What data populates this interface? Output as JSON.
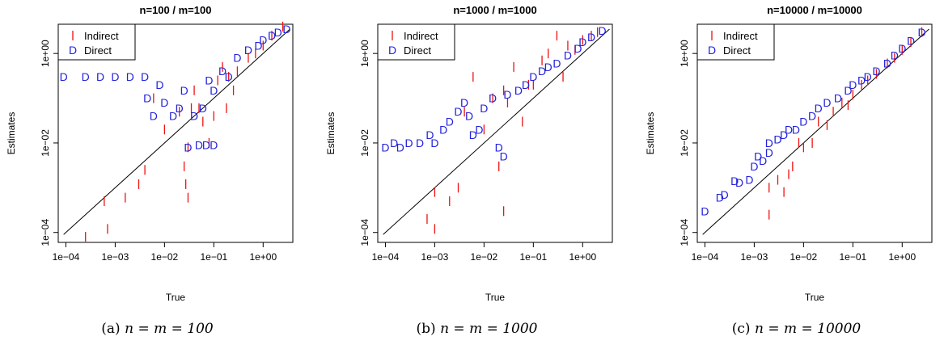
{
  "colors": {
    "indirect": "#ee1111",
    "direct": "#2222dd",
    "axis": "#000000"
  },
  "chart_data": [
    {
      "type": "scatter",
      "title": "n=100 / m=100",
      "xlabel": "True",
      "ylabel": "Estimates",
      "xscale": "log",
      "yscale": "log",
      "xlim": [
        7e-05,
        4
      ],
      "ylim": [
        6e-05,
        4.5
      ],
      "xticks": [
        "1e−04",
        "1e−03",
        "1e−02",
        "1e−01",
        "1e+00"
      ],
      "yticks": [
        "1e−04",
        "1e−02",
        "1e+00"
      ],
      "legend": {
        "position": "top-left",
        "entries": [
          {
            "symbol": "I",
            "label": "Indirect"
          },
          {
            "symbol": "D",
            "label": "Direct"
          }
        ]
      },
      "reference_line": "y = x",
      "series": [
        {
          "name": "Indirect",
          "symbol": "I",
          "points": [
            [
              0.00025,
              8e-05
            ],
            [
              0.0007,
              0.00012
            ],
            [
              0.0016,
              0.0006
            ],
            [
              0.003,
              0.0012
            ],
            [
              0.0006,
              0.0005
            ],
            [
              0.004,
              0.0025
            ],
            [
              0.006,
              0.1
            ],
            [
              0.01,
              0.02
            ],
            [
              0.02,
              0.05
            ],
            [
              0.025,
              0.003
            ],
            [
              0.027,
              0.0012
            ],
            [
              0.03,
              0.0006
            ],
            [
              0.03,
              0.008
            ],
            [
              0.035,
              0.06
            ],
            [
              0.04,
              0.15
            ],
            [
              0.05,
              0.06
            ],
            [
              0.06,
              0.03
            ],
            [
              0.08,
              0.01
            ],
            [
              0.1,
              0.04
            ],
            [
              0.12,
              0.25
            ],
            [
              0.15,
              0.5
            ],
            [
              0.18,
              0.06
            ],
            [
              0.2,
              0.3
            ],
            [
              0.25,
              0.15
            ],
            [
              0.3,
              0.4
            ],
            [
              0.5,
              0.8
            ],
            [
              0.7,
              1
            ],
            [
              1,
              1.5
            ],
            [
              1.5,
              2.5
            ],
            [
              2.5,
              4
            ]
          ]
        },
        {
          "name": "Direct",
          "symbol": "D",
          "points": [
            [
              9e-05,
              0.3
            ],
            [
              0.00025,
              0.3
            ],
            [
              0.0005,
              0.3
            ],
            [
              0.001,
              0.3
            ],
            [
              0.002,
              0.3
            ],
            [
              0.004,
              0.3
            ],
            [
              0.0045,
              0.1
            ],
            [
              0.006,
              0.04
            ],
            [
              0.008,
              0.2
            ],
            [
              0.01,
              0.08
            ],
            [
              0.015,
              0.04
            ],
            [
              0.02,
              0.06
            ],
            [
              0.025,
              0.15
            ],
            [
              0.03,
              0.008
            ],
            [
              0.04,
              0.04
            ],
            [
              0.05,
              0.009
            ],
            [
              0.06,
              0.06
            ],
            [
              0.07,
              0.009
            ],
            [
              0.1,
              0.009
            ],
            [
              0.08,
              0.25
            ],
            [
              0.1,
              0.15
            ],
            [
              0.15,
              0.4
            ],
            [
              0.2,
              0.3
            ],
            [
              0.3,
              0.8
            ],
            [
              0.5,
              1.2
            ],
            [
              0.8,
              1.5
            ],
            [
              1,
              2
            ],
            [
              1.5,
              2.5
            ],
            [
              2,
              3
            ],
            [
              3,
              3.5
            ]
          ]
        }
      ]
    },
    {
      "type": "scatter",
      "title": "n=1000 / m=1000",
      "xlabel": "True",
      "ylabel": "Estimates",
      "xscale": "log",
      "yscale": "log",
      "xlim": [
        7e-05,
        4
      ],
      "ylim": [
        6e-05,
        4.5
      ],
      "xticks": [
        "1e−04",
        "1e−03",
        "1e−02",
        "1e−01",
        "1e+00"
      ],
      "yticks": [
        "1e−04",
        "1e−02",
        "1e+00"
      ],
      "legend": {
        "position": "top-left",
        "entries": [
          {
            "symbol": "I",
            "label": "Indirect"
          },
          {
            "symbol": "D",
            "label": "Direct"
          }
        ]
      },
      "reference_line": "y = x",
      "series": [
        {
          "name": "Indirect",
          "symbol": "I",
          "points": [
            [
              0.0007,
              0.0002
            ],
            [
              0.001,
              0.00012
            ],
            [
              0.001,
              0.0008
            ],
            [
              0.002,
              0.0005
            ],
            [
              0.003,
              0.001
            ],
            [
              0.004,
              0.05
            ],
            [
              0.006,
              0.3
            ],
            [
              0.01,
              0.02
            ],
            [
              0.015,
              0.1
            ],
            [
              0.02,
              0.003
            ],
            [
              0.025,
              0.0003
            ],
            [
              0.025,
              0.15
            ],
            [
              0.03,
              0.08
            ],
            [
              0.04,
              0.5
            ],
            [
              0.06,
              0.03
            ],
            [
              0.08,
              0.2
            ],
            [
              0.1,
              0.2
            ],
            [
              0.15,
              0.7
            ],
            [
              0.2,
              1
            ],
            [
              0.3,
              2.5
            ],
            [
              0.4,
              0.3
            ],
            [
              0.5,
              1.5
            ],
            [
              0.7,
              1.2
            ],
            [
              1,
              2
            ],
            [
              1.5,
              2.5
            ],
            [
              2,
              3
            ]
          ]
        },
        {
          "name": "Direct",
          "symbol": "D",
          "points": [
            [
              0.0001,
              0.008
            ],
            [
              0.00015,
              0.01
            ],
            [
              0.0002,
              0.008
            ],
            [
              0.0003,
              0.01
            ],
            [
              0.0005,
              0.01
            ],
            [
              0.0008,
              0.015
            ],
            [
              0.001,
              0.01
            ],
            [
              0.0015,
              0.02
            ],
            [
              0.002,
              0.03
            ],
            [
              0.003,
              0.05
            ],
            [
              0.004,
              0.08
            ],
            [
              0.005,
              0.04
            ],
            [
              0.006,
              0.015
            ],
            [
              0.008,
              0.02
            ],
            [
              0.01,
              0.06
            ],
            [
              0.015,
              0.1
            ],
            [
              0.02,
              0.008
            ],
            [
              0.025,
              0.005
            ],
            [
              0.03,
              0.12
            ],
            [
              0.05,
              0.15
            ],
            [
              0.07,
              0.2
            ],
            [
              0.1,
              0.3
            ],
            [
              0.15,
              0.4
            ],
            [
              0.2,
              0.5
            ],
            [
              0.3,
              0.6
            ],
            [
              0.5,
              0.9
            ],
            [
              0.8,
              1.3
            ],
            [
              1,
              1.8
            ],
            [
              1.5,
              2.3
            ],
            [
              2.5,
              3.2
            ]
          ]
        }
      ]
    },
    {
      "type": "scatter",
      "title": "n=10000 / m=10000",
      "xlabel": "True",
      "ylabel": "Estimates",
      "xscale": "log",
      "yscale": "log",
      "xlim": [
        7e-05,
        4
      ],
      "ylim": [
        6e-05,
        4.5
      ],
      "xticks": [
        "1e−04",
        "1e−03",
        "1e−02",
        "1e−01",
        "1e+00"
      ],
      "yticks": [
        "1e−04",
        "1e−02",
        "1e+00"
      ],
      "legend": {
        "position": "top-left",
        "entries": [
          {
            "symbol": "I",
            "label": "Indirect"
          },
          {
            "symbol": "D",
            "label": "Direct"
          }
        ]
      },
      "reference_line": "y = x",
      "series": [
        {
          "name": "Indirect",
          "symbol": "I",
          "points": [
            [
              0.002,
              0.00025
            ],
            [
              0.002,
              0.001
            ],
            [
              0.003,
              0.0015
            ],
            [
              0.004,
              0.0008
            ],
            [
              0.005,
              0.002
            ],
            [
              0.006,
              0.003
            ],
            [
              0.008,
              0.01
            ],
            [
              0.01,
              0.008
            ],
            [
              0.015,
              0.01
            ],
            [
              0.02,
              0.03
            ],
            [
              0.03,
              0.025
            ],
            [
              0.04,
              0.05
            ],
            [
              0.06,
              0.08
            ],
            [
              0.08,
              0.07
            ],
            [
              0.1,
              0.12
            ],
            [
              0.15,
              0.2
            ],
            [
              0.2,
              0.25
            ],
            [
              0.3,
              0.35
            ],
            [
              0.5,
              0.6
            ],
            [
              0.7,
              0.8
            ],
            [
              1,
              1.2
            ],
            [
              1.5,
              1.8
            ],
            [
              2.5,
              3
            ]
          ]
        },
        {
          "name": "Direct",
          "symbol": "D",
          "points": [
            [
              0.0001,
              0.0003
            ],
            [
              0.0002,
              0.0006
            ],
            [
              0.00025,
              0.0007
            ],
            [
              0.0004,
              0.0014
            ],
            [
              0.0005,
              0.0013
            ],
            [
              0.0008,
              0.0015
            ],
            [
              0.001,
              0.003
            ],
            [
              0.0012,
              0.005
            ],
            [
              0.0015,
              0.004
            ],
            [
              0.002,
              0.006
            ],
            [
              0.002,
              0.01
            ],
            [
              0.003,
              0.012
            ],
            [
              0.004,
              0.015
            ],
            [
              0.005,
              0.02
            ],
            [
              0.007,
              0.02
            ],
            [
              0.01,
              0.03
            ],
            [
              0.015,
              0.04
            ],
            [
              0.02,
              0.06
            ],
            [
              0.03,
              0.08
            ],
            [
              0.05,
              0.1
            ],
            [
              0.08,
              0.15
            ],
            [
              0.1,
              0.2
            ],
            [
              0.15,
              0.25
            ],
            [
              0.2,
              0.3
            ],
            [
              0.3,
              0.4
            ],
            [
              0.5,
              0.6
            ],
            [
              0.7,
              0.9
            ],
            [
              1,
              1.3
            ],
            [
              1.5,
              1.9
            ],
            [
              2.5,
              3
            ]
          ]
        }
      ]
    }
  ],
  "captions": [
    {
      "prefix": "(a) ",
      "expr": "n = m = 100"
    },
    {
      "prefix": "(b) ",
      "expr": "n = m = 1000"
    },
    {
      "prefix": "(c) ",
      "expr": "n = m = 10000"
    }
  ]
}
